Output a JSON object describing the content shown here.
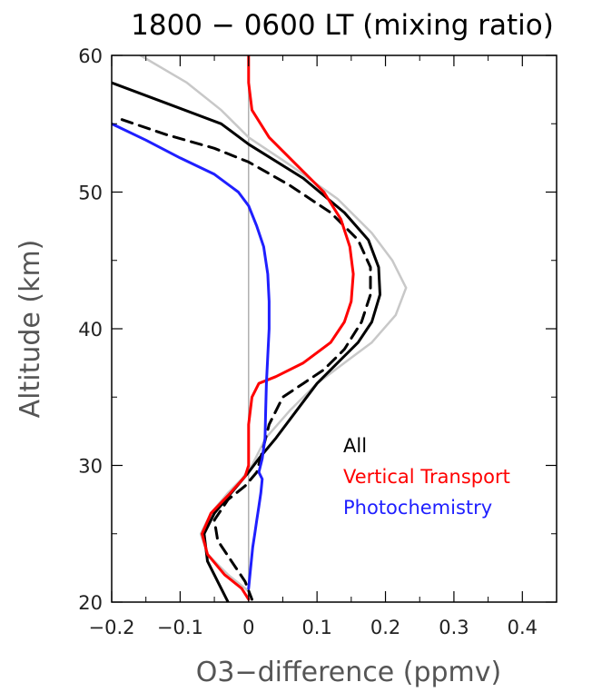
{
  "chart_data": {
    "type": "line",
    "title": "1800 − 0600 LT (mixing ratio)",
    "xlabel": "O3−difference (ppmv)",
    "ylabel": "Altitude (km)",
    "xlim": [
      -0.2,
      0.45
    ],
    "ylim": [
      20,
      60
    ],
    "xticks": [
      -0.2,
      -0.1,
      0,
      0.1,
      0.2,
      0.3,
      0.4
    ],
    "xtick_labels": [
      "−0.2",
      "−0.1",
      "0",
      "0.1",
      "0.2",
      "0.3",
      "0.4"
    ],
    "yticks": [
      20,
      30,
      40,
      50,
      60
    ],
    "ytick_labels": [
      "20",
      "30",
      "40",
      "50",
      "60"
    ],
    "zero_line": 0,
    "grid": false,
    "legend_position": "lower-right",
    "series": [
      {
        "name": "",
        "color": "#c8c8c8",
        "dash": "solid",
        "in_legend": false,
        "points": [
          [
            -0.158,
            60
          ],
          [
            -0.09,
            58
          ],
          [
            -0.04,
            56
          ],
          [
            0.0,
            54
          ],
          [
            0.06,
            52
          ],
          [
            0.13,
            49.5
          ],
          [
            0.18,
            47
          ],
          [
            0.21,
            45
          ],
          [
            0.23,
            43
          ],
          [
            0.215,
            41
          ],
          [
            0.18,
            39
          ],
          [
            0.14,
            37.5
          ],
          [
            0.1,
            36
          ],
          [
            0.06,
            34
          ],
          [
            0.025,
            32
          ],
          [
            0.005,
            30
          ],
          [
            -0.01,
            29
          ],
          [
            -0.03,
            28
          ],
          [
            -0.055,
            26.5
          ],
          [
            -0.07,
            25
          ],
          [
            -0.06,
            23.5
          ],
          [
            -0.03,
            22
          ],
          [
            0.0,
            20.8
          ],
          [
            0.0,
            20.2
          ]
        ]
      },
      {
        "name": "All",
        "color": "#000000",
        "dash": "solid",
        "in_legend": true,
        "points": [
          [
            -0.2,
            58
          ],
          [
            -0.12,
            56.5
          ],
          [
            -0.04,
            55
          ],
          [
            0.0,
            53.5
          ],
          [
            0.08,
            51
          ],
          [
            0.14,
            48.5
          ],
          [
            0.175,
            46.5
          ],
          [
            0.19,
            44.5
          ],
          [
            0.192,
            42.5
          ],
          [
            0.18,
            40.5
          ],
          [
            0.16,
            39
          ],
          [
            0.13,
            37.5
          ],
          [
            0.1,
            36
          ],
          [
            0.07,
            34
          ],
          [
            0.04,
            32
          ],
          [
            0.015,
            30.5
          ],
          [
            0.0,
            29.5
          ],
          [
            -0.025,
            28
          ],
          [
            -0.05,
            26.5
          ],
          [
            -0.065,
            25
          ],
          [
            -0.06,
            23
          ],
          [
            -0.045,
            21.5
          ],
          [
            -0.03,
            20
          ]
        ]
      },
      {
        "name": "",
        "color": "#000000",
        "dash": "dashed",
        "in_legend": false,
        "points": [
          [
            -0.185,
            55.3
          ],
          [
            -0.12,
            54.2
          ],
          [
            -0.05,
            53.2
          ],
          [
            0.0,
            52.2
          ],
          [
            0.06,
            50.5
          ],
          [
            0.12,
            48.5
          ],
          [
            0.16,
            46.5
          ],
          [
            0.178,
            44.5
          ],
          [
            0.178,
            42.5
          ],
          [
            0.165,
            40.5
          ],
          [
            0.14,
            38.5
          ],
          [
            0.11,
            37
          ],
          [
            0.08,
            36
          ],
          [
            0.05,
            35
          ],
          [
            0.03,
            33
          ],
          [
            0.02,
            31
          ],
          [
            0.012,
            29.5
          ],
          [
            -0.005,
            28.5
          ],
          [
            -0.03,
            27.5
          ],
          [
            -0.05,
            26
          ],
          [
            -0.045,
            24.5
          ],
          [
            -0.025,
            23
          ],
          [
            -0.005,
            21.5
          ],
          [
            0.005,
            20.2
          ]
        ]
      },
      {
        "name": "Vertical Transport",
        "color": "#ff0000",
        "dash": "solid",
        "in_legend": true,
        "points": [
          [
            0.0,
            60
          ],
          [
            0.0,
            58
          ],
          [
            0.005,
            56
          ],
          [
            0.03,
            54
          ],
          [
            0.07,
            52
          ],
          [
            0.11,
            50
          ],
          [
            0.135,
            48
          ],
          [
            0.148,
            46
          ],
          [
            0.153,
            44
          ],
          [
            0.15,
            42
          ],
          [
            0.14,
            40.5
          ],
          [
            0.12,
            39
          ],
          [
            0.08,
            37.5
          ],
          [
            0.04,
            36.5
          ],
          [
            0.015,
            36
          ],
          [
            0.005,
            35
          ],
          [
            0.0,
            33
          ],
          [
            0.0,
            30
          ],
          [
            -0.005,
            29.2
          ],
          [
            -0.03,
            27.8
          ],
          [
            -0.055,
            26.5
          ],
          [
            -0.068,
            25
          ],
          [
            -0.06,
            23.5
          ],
          [
            -0.035,
            22
          ],
          [
            -0.01,
            21
          ],
          [
            0.0,
            20.2
          ]
        ]
      },
      {
        "name": "Photochemistry",
        "color": "#1f1fff",
        "dash": "solid",
        "in_legend": true,
        "points": [
          [
            -0.2,
            55
          ],
          [
            -0.15,
            53.8
          ],
          [
            -0.1,
            52.5
          ],
          [
            -0.05,
            51.3
          ],
          [
            -0.015,
            50
          ],
          [
            0.0,
            49
          ],
          [
            0.012,
            47.5
          ],
          [
            0.022,
            46
          ],
          [
            0.028,
            44
          ],
          [
            0.03,
            42
          ],
          [
            0.03,
            40
          ],
          [
            0.028,
            38
          ],
          [
            0.026,
            36
          ],
          [
            0.025,
            34
          ],
          [
            0.024,
            32
          ],
          [
            0.02,
            30.5
          ],
          [
            0.015,
            29.5
          ],
          [
            0.02,
            29
          ],
          [
            0.018,
            28
          ],
          [
            0.015,
            27
          ],
          [
            0.012,
            26
          ],
          [
            0.009,
            25
          ],
          [
            0.006,
            24
          ],
          [
            0.004,
            23
          ],
          [
            0.002,
            22
          ],
          [
            0.0,
            21
          ]
        ]
      }
    ]
  }
}
